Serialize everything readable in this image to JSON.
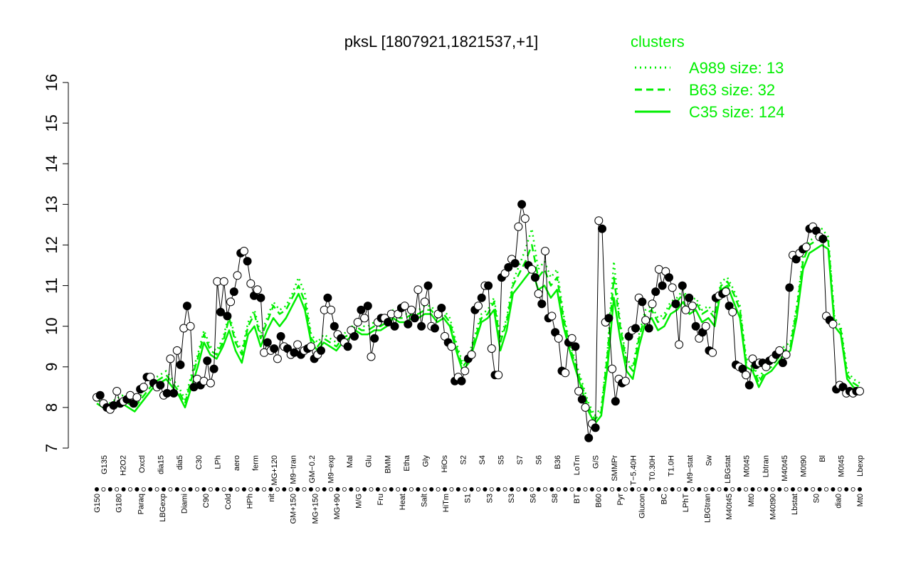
{
  "colors": {
    "cluster": "#00ee00",
    "axis": "#000000",
    "point_open": "#ffffff",
    "point_filled": "#000000"
  },
  "chart_data": {
    "type": "line",
    "title": "pksL [1807921,1821537,+1]",
    "xlabel": "",
    "ylabel": "",
    "ylim": [
      7,
      16
    ],
    "yticks": [
      7,
      8,
      9,
      10,
      11,
      12,
      13,
      14,
      15,
      16
    ],
    "grid": false,
    "legend_position": "top-right",
    "legend": {
      "title": "clusters",
      "entries": [
        {
          "label": "A989 size: 13",
          "style": "dotted"
        },
        {
          "label": "B63 size: 32",
          "style": "dashed"
        },
        {
          "label": "C35 size: 124",
          "style": "solid"
        }
      ]
    },
    "x_tick_labels_top": [
      "G135",
      "H2O2",
      "Oxctl",
      "dia15",
      "dia5",
      "C30",
      "LPh",
      "aero",
      "ferm",
      "MG+120",
      "M9−tran",
      "GM−0.2",
      "M9−exp",
      "Mal",
      "Glu",
      "BMM",
      "Etha",
      "Gly",
      "HiOs",
      "S2",
      "S4",
      "S5",
      "S7",
      "S6",
      "B36",
      "LoTm",
      "G/S",
      "SMMPr",
      "T−5.40H",
      "T0.30H",
      "T1.0H",
      "M9−stat",
      "Sw",
      "LBGstat",
      "M0t45",
      "Lbtran",
      "M40t45",
      "M0t90",
      "Bl",
      "M0t45",
      "Lbexp"
    ],
    "x_tick_labels_bottom": [
      "G150",
      "G180",
      "Paraq",
      "LBGexp",
      "Diami",
      "C90",
      "Cold",
      "HPh",
      "nit",
      "GM+150",
      "MG+150",
      "MG+90",
      "M/G",
      "Fru",
      "Heat",
      "Salt",
      "HiTm",
      "S1",
      "S3",
      "S3",
      "S6",
      "S8",
      "BT",
      "B60",
      "Pyr",
      "Glucon",
      "BC",
      "LPhT",
      "LBGtran",
      "M40t45",
      "Mt0",
      "M40t90",
      "Lbstat",
      "S0",
      "dia0",
      "Mt0"
    ],
    "series": [
      {
        "style": "solid",
        "values": [
          8.1,
          8.0,
          7.9,
          8.0,
          8.1,
          8.0,
          7.9,
          8.1,
          8.3,
          8.5,
          8.6,
          8.7,
          8.5,
          8.3,
          8.0,
          8.5,
          9.0,
          9.6,
          9.3,
          9.2,
          9.5,
          9.9,
          9.4,
          9.1,
          9.8,
          10.0,
          9.5,
          9.9,
          10.2,
          10.0,
          10.2,
          10.5,
          10.8,
          10.4,
          9.6,
          9.4,
          9.6,
          9.5,
          9.4,
          9.6,
          9.7,
          9.9,
          9.8,
          9.8,
          9.9,
          9.9,
          10.0,
          10.2,
          10.1,
          10.1,
          10.2,
          10.2,
          10.3,
          10.3,
          10.1,
          10.2,
          10.0,
          9.4,
          8.9,
          9.1,
          9.6,
          10.1,
          10.2,
          10.4,
          9.4,
          9.9,
          10.8,
          11.0,
          11.2,
          11.4,
          10.9,
          11.0,
          10.7,
          10.9,
          10.0,
          9.4,
          8.9,
          8.4,
          7.9,
          7.6,
          7.8,
          9.0,
          10.7,
          9.7,
          8.9,
          8.7,
          9.5,
          10.1,
          10.2,
          9.9,
          10.0,
          10.3,
          10.4,
          10.6,
          10.3,
          10.4,
          10.1,
          10.2,
          10.0,
          10.9,
          11.0,
          10.6,
          10.2,
          9.0,
          8.9,
          8.5,
          8.8,
          8.9,
          9.1,
          9.3,
          9.4,
          10.2,
          11.4,
          11.8,
          11.9,
          12.0,
          11.9,
          10.0,
          9.8,
          8.7,
          8.5,
          8.4
        ]
      },
      {
        "style": "dashed",
        "values": [
          8.2,
          8.1,
          8.0,
          8.1,
          8.2,
          8.1,
          8.0,
          8.2,
          8.4,
          8.6,
          8.7,
          8.8,
          8.6,
          8.4,
          8.1,
          8.7,
          9.2,
          9.8,
          9.4,
          9.3,
          9.6,
          10.2,
          9.6,
          9.3,
          10.0,
          10.3,
          9.7,
          10.1,
          10.5,
          10.3,
          10.4,
          10.7,
          11.0,
          10.6,
          9.7,
          9.5,
          9.7,
          9.6,
          9.5,
          9.7,
          9.8,
          10.0,
          9.9,
          9.9,
          10.0,
          10.0,
          10.1,
          10.3,
          10.2,
          10.2,
          10.3,
          10.3,
          10.4,
          10.4,
          10.2,
          10.3,
          10.1,
          9.5,
          9.0,
          9.2,
          9.7,
          10.2,
          10.3,
          10.6,
          9.6,
          10.1,
          11.0,
          11.3,
          11.6,
          12.0,
          11.2,
          11.4,
          11.0,
          11.2,
          10.2,
          9.5,
          9.0,
          8.5,
          8.0,
          7.7,
          7.9,
          9.3,
          11.2,
          10.0,
          9.1,
          8.9,
          9.7,
          10.3,
          10.4,
          10.1,
          10.2,
          10.5,
          10.6,
          10.8,
          10.5,
          10.6,
          10.3,
          10.4,
          10.2,
          11.0,
          11.1,
          10.8,
          10.4,
          9.1,
          9.0,
          8.6,
          8.9,
          9.0,
          9.2,
          9.4,
          9.5,
          10.4,
          11.6,
          12.0,
          12.1,
          12.2,
          12.1,
          10.1,
          9.9,
          8.8,
          8.6,
          8.5
        ]
      },
      {
        "style": "dotted",
        "values": [
          8.3,
          8.2,
          8.1,
          8.2,
          8.3,
          8.2,
          8.1,
          8.3,
          8.5,
          8.7,
          8.8,
          8.9,
          8.7,
          8.5,
          8.2,
          8.8,
          9.3,
          9.9,
          9.5,
          9.4,
          9.7,
          10.3,
          9.7,
          9.4,
          10.1,
          10.4,
          9.8,
          10.2,
          10.6,
          10.4,
          10.5,
          10.8,
          11.2,
          10.8,
          9.8,
          9.6,
          9.8,
          9.7,
          9.6,
          9.8,
          9.9,
          10.1,
          10.0,
          10.0,
          10.1,
          10.1,
          10.2,
          10.4,
          10.3,
          10.3,
          10.4,
          10.4,
          10.5,
          10.5,
          10.3,
          10.4,
          10.2,
          9.6,
          9.1,
          9.3,
          9.8,
          10.3,
          10.4,
          10.7,
          9.7,
          10.2,
          11.1,
          11.5,
          11.9,
          12.4,
          11.4,
          11.6,
          11.2,
          11.4,
          10.3,
          9.6,
          9.1,
          8.6,
          8.1,
          7.8,
          8.0,
          9.4,
          11.6,
          10.1,
          9.2,
          9.0,
          9.8,
          10.4,
          10.5,
          10.2,
          10.3,
          10.6,
          10.7,
          10.9,
          10.6,
          10.7,
          10.4,
          10.5,
          10.3,
          11.1,
          11.2,
          10.9,
          10.5,
          9.2,
          9.1,
          8.7,
          9.0,
          9.1,
          9.3,
          9.5,
          9.6,
          10.5,
          11.7,
          12.1,
          12.2,
          12.4,
          12.2,
          10.2,
          10.0,
          8.9,
          8.7,
          8.6
        ]
      }
    ],
    "points": {
      "values": [
        8.25,
        8.3,
        8.1,
        8.0,
        7.95,
        8.05,
        8.4,
        8.1,
        8.15,
        8.2,
        8.3,
        8.1,
        8.25,
        8.45,
        8.5,
        8.75,
        8.75,
        8.6,
        8.5,
        8.55,
        8.3,
        8.35,
        9.2,
        8.35,
        9.4,
        9.05,
        9.95,
        10.5,
        10.0,
        8.5,
        8.7,
        8.55,
        8.65,
        9.15,
        8.6,
        8.95,
        11.1,
        10.35,
        11.1,
        10.25,
        10.6,
        10.85,
        11.25,
        11.8,
        11.85,
        11.6,
        11.05,
        10.75,
        10.9,
        10.7,
        9.35,
        9.6,
        9.4,
        9.45,
        9.2,
        9.75,
        9.5,
        9.45,
        9.3,
        9.35,
        9.55,
        9.3,
        9.4,
        9.45,
        9.5,
        9.2,
        9.3,
        9.4,
        10.4,
        10.7,
        10.4,
        10.0,
        9.8,
        9.7,
        9.6,
        9.5,
        9.9,
        9.75,
        10.1,
        10.4,
        10.2,
        10.5,
        9.25,
        9.7,
        10.1,
        10.2,
        10.2,
        10.1,
        10.3,
        10.0,
        10.3,
        10.45,
        10.5,
        10.05,
        10.4,
        10.2,
        10.9,
        10.0,
        10.6,
        11.0,
        10.0,
        9.95,
        10.3,
        10.45,
        9.75,
        9.6,
        9.5,
        8.65,
        8.75,
        8.65,
        8.9,
        9.2,
        9.3,
        10.4,
        10.5,
        10.7,
        11.0,
        11.0,
        9.45,
        8.8,
        8.8,
        11.2,
        11.3,
        11.45,
        11.65,
        11.55,
        12.45,
        13.0,
        12.65,
        11.5,
        11.4,
        11.2,
        10.8,
        10.55,
        11.85,
        10.2,
        10.25,
        9.85,
        9.7,
        8.9,
        8.85,
        9.6,
        9.7,
        9.5,
        8.4,
        8.2,
        8.0,
        7.25,
        7.6,
        7.5,
        12.6,
        12.4,
        10.1,
        10.2,
        8.95,
        8.15,
        8.7,
        8.6,
        8.65,
        9.75,
        9.9,
        9.95,
        10.7,
        10.6,
        10.15,
        9.95,
        10.55,
        10.85,
        11.4,
        11.0,
        11.35,
        11.2,
        10.95,
        10.55,
        9.55,
        11.0,
        10.4,
        10.7,
        10.5,
        10.0,
        9.7,
        9.85,
        10.0,
        9.4,
        9.35,
        10.7,
        10.75,
        10.8,
        10.85,
        10.5,
        10.35,
        9.05,
        9.0,
        8.95,
        8.8,
        8.55,
        9.2,
        9.05,
        9.1,
        9.1,
        9.0,
        9.15,
        9.2,
        9.3,
        9.4,
        9.1,
        9.3,
        10.95,
        11.75,
        11.65,
        11.8,
        11.9,
        11.95,
        12.4,
        12.45,
        12.35,
        12.2,
        12.15,
        10.25,
        10.15,
        10.05,
        8.45,
        8.55,
        8.5,
        8.35,
        8.4,
        8.35,
        8.4,
        8.4
      ]
    }
  }
}
